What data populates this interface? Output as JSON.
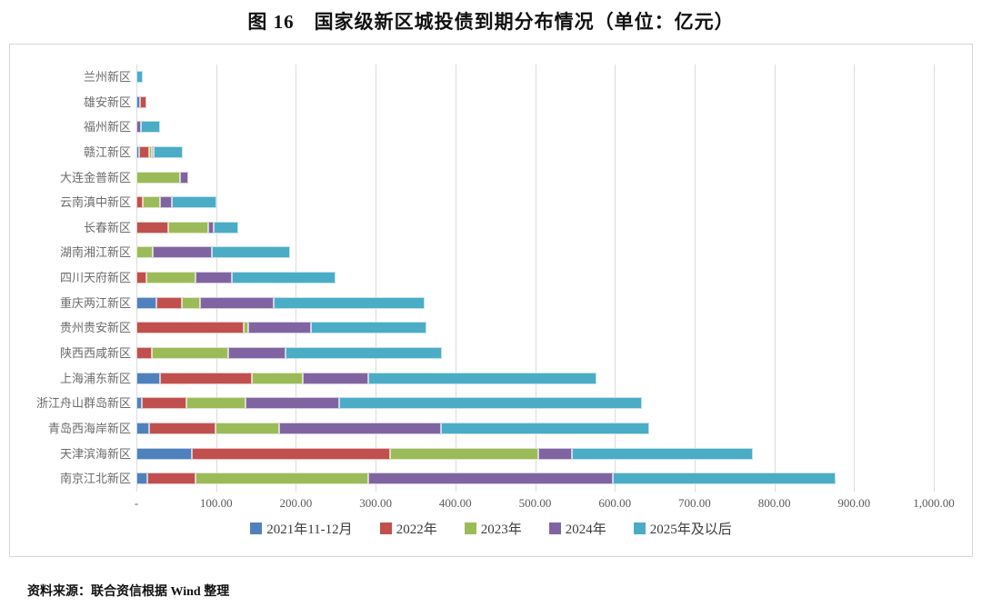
{
  "title": "图 16　国家级新区城投债到期分布情况（单位：亿元）",
  "source_note": "资料来源：联合资信根据 Wind 整理",
  "colors": {
    "grid": "#dcdcdc",
    "axis_text": "#5a5a5a",
    "series_blue": "#4F81BD",
    "series_red": "#C0504D",
    "series_green": "#9BBB59",
    "series_purple": "#8064A2",
    "series_cyan": "#4BACC6"
  },
  "chart_data": {
    "type": "bar",
    "orientation": "horizontal",
    "stacked": true,
    "unit": "亿元",
    "grid": true,
    "legend_position": "bottom",
    "categories": [
      "兰州新区",
      "雄安新区",
      "福州新区",
      "赣江新区",
      "大连金普新区",
      "云南滇中新区",
      "长春新区",
      "湖南湘江新区",
      "四川天府新区",
      "重庆两江新区",
      "贵州贵安新区",
      "陕西西咸新区",
      "上海浦东新区",
      "浙江舟山群岛新区",
      "青岛西海岸新区",
      "天津滨海新区",
      "南京江北新区"
    ],
    "series": [
      {
        "name": "2021年11-12月",
        "color": "#4F81BD",
        "values": [
          0,
          5,
          0,
          3,
          0,
          0,
          0,
          0,
          0,
          25,
          0,
          0,
          30,
          7,
          16,
          69,
          14
        ]
      },
      {
        "name": "2022年",
        "color": "#C0504D",
        "values": [
          0,
          7,
          0,
          13,
          0,
          8,
          40,
          0,
          13,
          32,
          135,
          19,
          115,
          56,
          83,
          249,
          60
        ]
      },
      {
        "name": "2023年",
        "color": "#9BBB59",
        "values": [
          0,
          0,
          0,
          3,
          55,
          22,
          50,
          21,
          61,
          23,
          5,
          96,
          64,
          74,
          80,
          186,
          217
        ]
      },
      {
        "name": "2024年",
        "color": "#8064A2",
        "values": [
          0,
          0,
          6,
          3,
          10,
          14,
          7,
          74,
          46,
          92,
          79,
          72,
          82,
          117,
          203,
          42,
          307
        ]
      },
      {
        "name": "2025年及以后",
        "color": "#4BACC6",
        "values": [
          8,
          0,
          24,
          36,
          0,
          56,
          31,
          98,
          130,
          190,
          145,
          196,
          286,
          380,
          261,
          227,
          279
        ]
      }
    ],
    "x_axis": {
      "min": 0,
      "max": 1000,
      "step": 100,
      "tick_labels": [
        "-",
        "100.00",
        "200.00",
        "300.00",
        "400.00",
        "500.00",
        "600.00",
        "700.00",
        "800.00",
        "900.00",
        "1,000.00"
      ]
    }
  }
}
